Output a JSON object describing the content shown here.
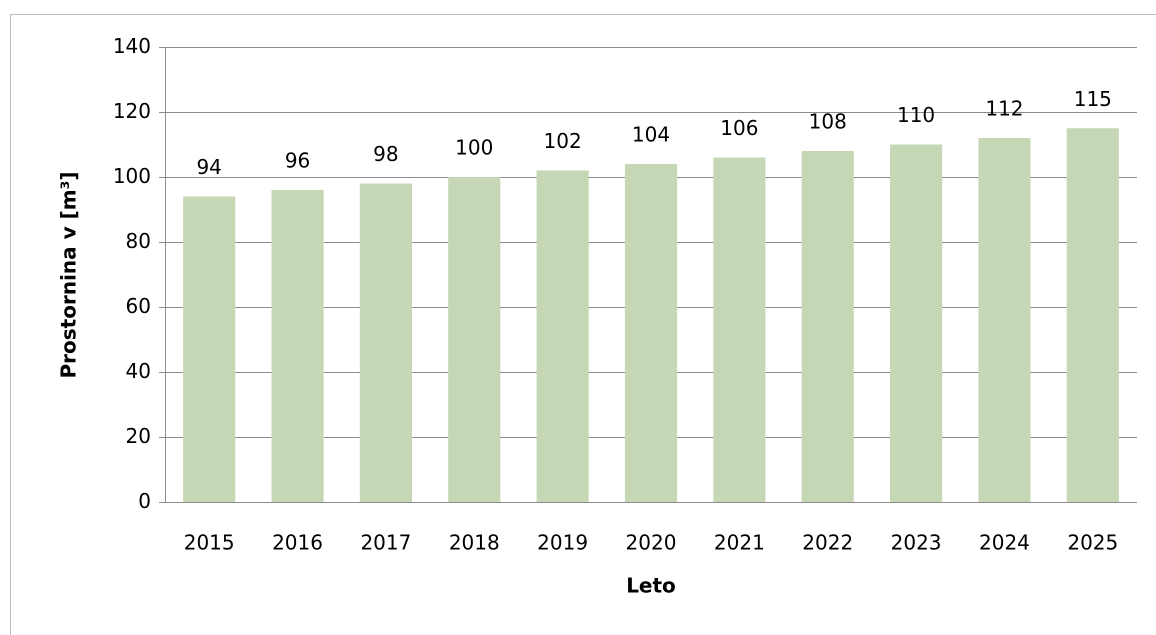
{
  "chart_data": {
    "type": "bar",
    "categories": [
      "2015",
      "2016",
      "2017",
      "2018",
      "2019",
      "2020",
      "2021",
      "2022",
      "2023",
      "2024",
      "2025"
    ],
    "values": [
      94,
      96,
      98,
      100,
      102,
      104,
      106,
      108,
      110,
      112,
      115
    ],
    "color": "#c6d7b5",
    "xlabel": "Leto",
    "ylabel": "Prostornina v [m³]",
    "ylim": [
      0,
      140
    ],
    "yticks": [
      0,
      20,
      40,
      60,
      80,
      100,
      120,
      140
    ],
    "grid": true
  }
}
